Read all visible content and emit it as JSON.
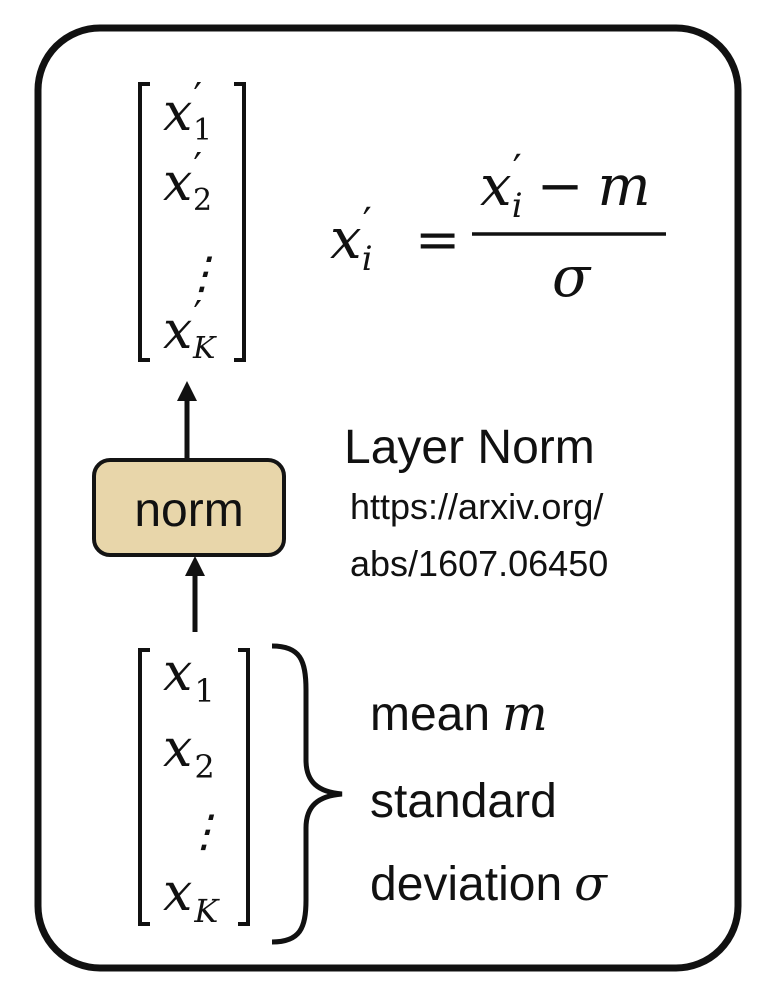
{
  "output_vector": {
    "e1": {
      "base": "x",
      "prime": "′",
      "sub": "1"
    },
    "e2": {
      "base": "x",
      "prime": "′",
      "sub": "2"
    },
    "dots": "⋮",
    "eK": {
      "base": "x",
      "prime": "′",
      "sub": "K"
    }
  },
  "formula": {
    "lhs": {
      "base": "x",
      "prime": "′",
      "sub": "i"
    },
    "equals": "=",
    "num": {
      "base": "x",
      "prime": "′",
      "sub": "i",
      "op": "−",
      "var": "m"
    },
    "den": "σ"
  },
  "norm_box": {
    "label": "norm",
    "fill": "#e8d6aa",
    "stroke": "#141414"
  },
  "layer_norm": {
    "title": "Layer Norm",
    "link_line1": "https://arxiv.org/",
    "link_line2": "abs/1607.06450"
  },
  "input_vector": {
    "e1": {
      "base": "x",
      "sub": "1"
    },
    "e2": {
      "base": "x",
      "sub": "2"
    },
    "dots": "⋮",
    "eK": {
      "base": "x",
      "sub": "K"
    }
  },
  "stats": {
    "mean_word": "mean",
    "mean_var": "m",
    "std_line1": "standard",
    "std_line2_word": "deviation",
    "std_var": "σ"
  }
}
